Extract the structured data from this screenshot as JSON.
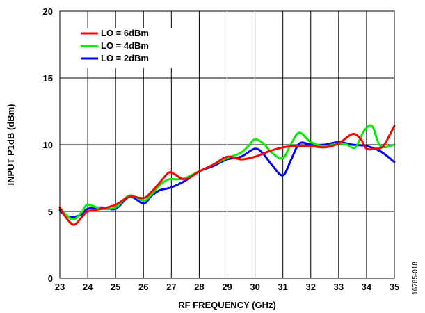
{
  "figure_code": "16785-018",
  "chart_data": {
    "type": "line",
    "title": "",
    "xlabel": "RF FREQUENCY (GHz)",
    "ylabel": "INPUT P1dB (dBm)",
    "xlim": [
      23,
      35
    ],
    "ylim": [
      0,
      20
    ],
    "xticks": [
      23,
      24,
      25,
      26,
      27,
      28,
      29,
      30,
      31,
      32,
      33,
      34,
      35
    ],
    "yticks": [
      0,
      5,
      10,
      15,
      20
    ],
    "grid": true,
    "legend_position": "top-left",
    "series": [
      {
        "name": "LO = 6dBm",
        "color": "#ff0000",
        "x": [
          23,
          23.2,
          23.5,
          23.8,
          24,
          24.5,
          25,
          25.5,
          26,
          26.3,
          26.6,
          26.9,
          27.1,
          27.5,
          28,
          28.5,
          29,
          29.5,
          30,
          30.5,
          31,
          31.5,
          32,
          32.5,
          33,
          33.5,
          33.8,
          34,
          34.3,
          34.6,
          35
        ],
        "y": [
          5.3,
          4.6,
          4.0,
          4.6,
          5.0,
          5.2,
          5.5,
          6.1,
          6.0,
          6.5,
          7.2,
          7.9,
          7.8,
          7.4,
          8.0,
          8.5,
          9.1,
          8.9,
          9.1,
          9.5,
          9.8,
          9.9,
          9.9,
          9.8,
          10.1,
          10.8,
          10.4,
          9.7,
          9.7,
          9.9,
          11.4
        ]
      },
      {
        "name": "LO = 4dBm",
        "color": "#00ee00",
        "x": [
          23,
          23.2,
          23.5,
          23.8,
          24,
          24.5,
          25,
          25.5,
          26,
          26.3,
          26.6,
          26.9,
          27.2,
          27.5,
          28,
          28.5,
          29,
          29.5,
          29.8,
          30,
          30.3,
          30.6,
          31,
          31.3,
          31.6,
          32,
          32.5,
          33,
          33.3,
          33.6,
          33.9,
          34.2,
          34.5,
          35
        ],
        "y": [
          5.3,
          4.8,
          4.4,
          5.0,
          5.5,
          5.2,
          5.3,
          6.2,
          5.8,
          6.3,
          7.0,
          7.4,
          7.4,
          7.5,
          8.0,
          8.5,
          9.0,
          9.4,
          10.0,
          10.4,
          10.1,
          9.4,
          9.0,
          10.1,
          10.9,
          10.2,
          9.9,
          10.1,
          10.0,
          9.8,
          11.0,
          11.4,
          9.9,
          10.0
        ]
      },
      {
        "name": "LO = 2dBm",
        "color": "#0000ff",
        "x": [
          23,
          23.2,
          23.5,
          23.8,
          24,
          24.5,
          25,
          25.5,
          26,
          26.3,
          26.6,
          27,
          27.5,
          28,
          28.5,
          29,
          29.5,
          30,
          30.3,
          30.6,
          31,
          31.3,
          31.6,
          32,
          32.5,
          33,
          33.5,
          34,
          34.5,
          35
        ],
        "y": [
          5.1,
          4.7,
          4.6,
          4.8,
          5.2,
          5.3,
          5.2,
          6.1,
          5.6,
          6.2,
          6.6,
          6.8,
          7.3,
          8.0,
          8.4,
          8.9,
          9.1,
          9.7,
          9.3,
          8.5,
          7.7,
          8.9,
          10.1,
          10.0,
          10.0,
          10.2,
          10.0,
          9.9,
          9.5,
          8.7
        ]
      }
    ]
  }
}
